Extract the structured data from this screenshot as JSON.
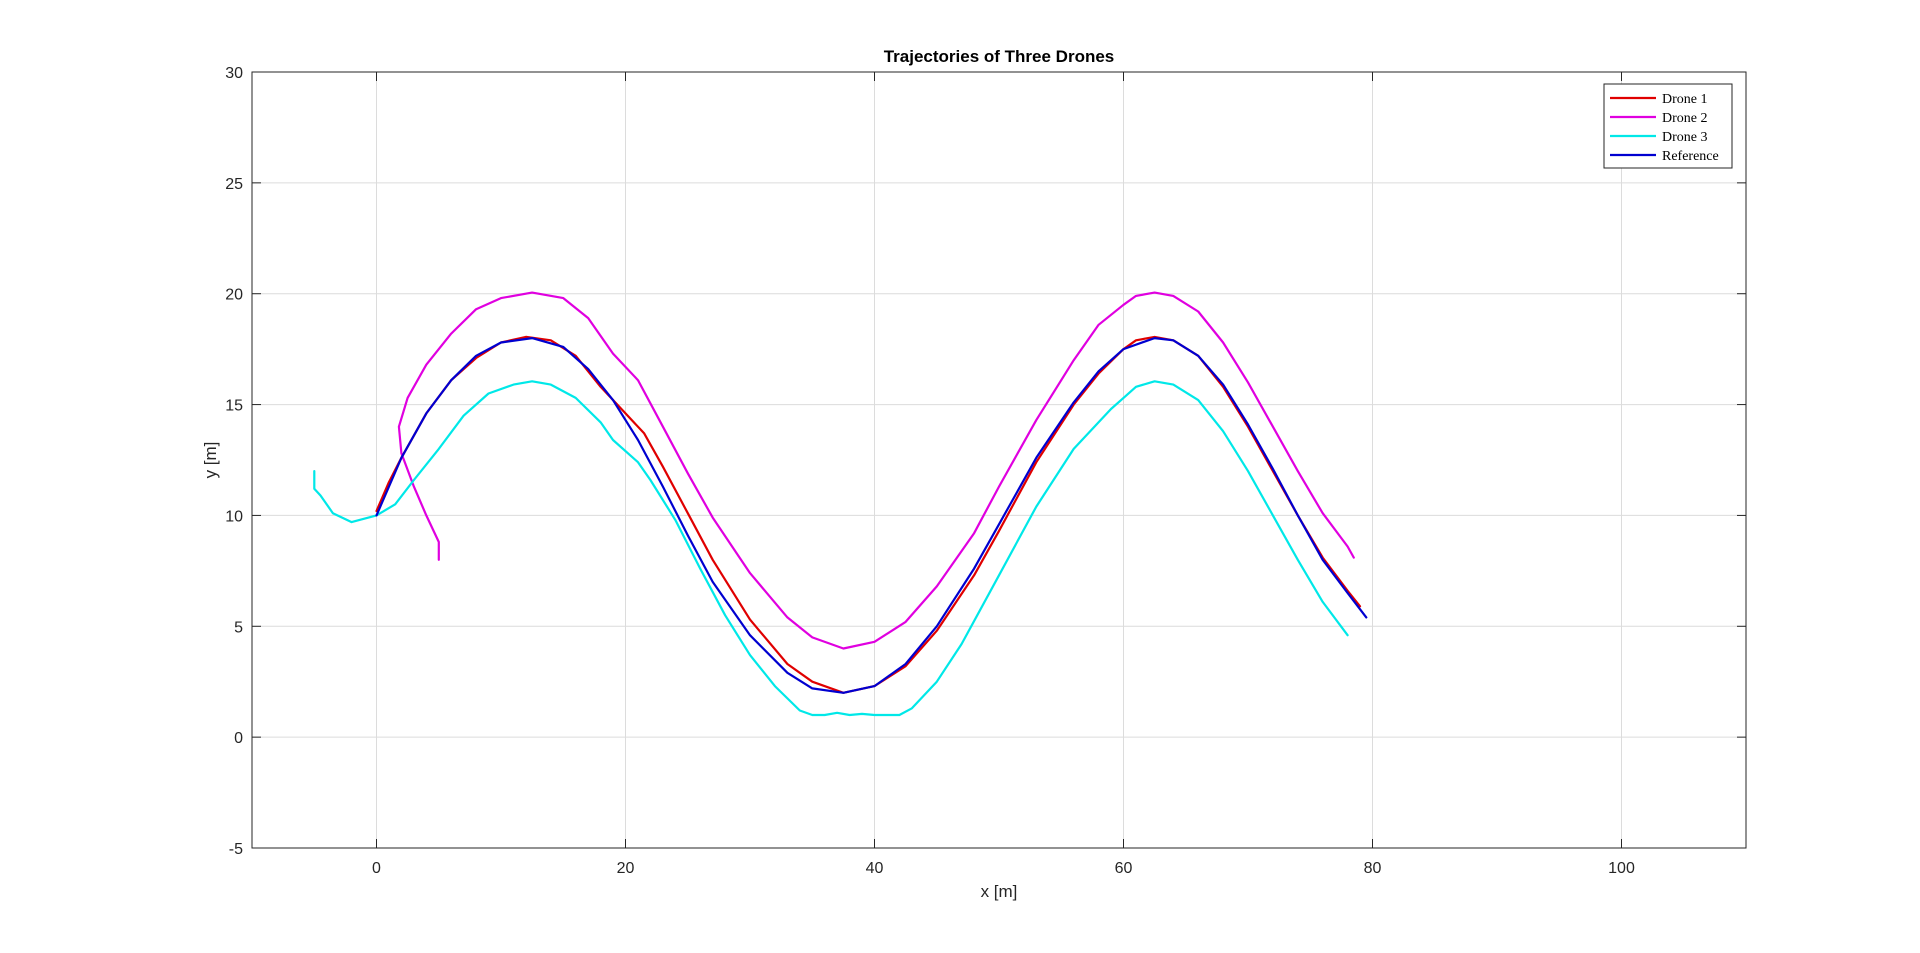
{
  "chart_data": {
    "type": "line",
    "title": "Trajectories of Three Drones",
    "xlabel": "x [m]",
    "ylabel": "y [m]",
    "xlim": [
      -10,
      110
    ],
    "ylim": [
      -5,
      30
    ],
    "xticks": [
      0,
      20,
      40,
      60,
      80,
      100
    ],
    "yticks": [
      -5,
      0,
      5,
      10,
      15,
      20,
      25,
      30
    ],
    "grid": true,
    "legend_position": "top-right",
    "series": [
      {
        "name": "Drone 1",
        "color": "#e00000",
        "points": [
          [
            0,
            10.2
          ],
          [
            1,
            11.5
          ],
          [
            2,
            12.6
          ],
          [
            4,
            14.6
          ],
          [
            6,
            16.1
          ],
          [
            8,
            17.1
          ],
          [
            10,
            17.8
          ],
          [
            12,
            18.05
          ],
          [
            14,
            17.9
          ],
          [
            16,
            17.2
          ],
          [
            18,
            15.8
          ],
          [
            20,
            14.6
          ],
          [
            21.5,
            13.7
          ],
          [
            23,
            12.2
          ],
          [
            25,
            10.1
          ],
          [
            27,
            8.0
          ],
          [
            30,
            5.3
          ],
          [
            33,
            3.3
          ],
          [
            35,
            2.5
          ],
          [
            37.5,
            2.0
          ],
          [
            40,
            2.3
          ],
          [
            42.5,
            3.2
          ],
          [
            45,
            4.8
          ],
          [
            48,
            7.3
          ],
          [
            50,
            9.3
          ],
          [
            53,
            12.4
          ],
          [
            56,
            15.0
          ],
          [
            58,
            16.4
          ],
          [
            60,
            17.5
          ],
          [
            61,
            17.9
          ],
          [
            62.5,
            18.05
          ],
          [
            64,
            17.9
          ],
          [
            66,
            17.2
          ],
          [
            68,
            15.8
          ],
          [
            70,
            14.0
          ],
          [
            72,
            12.0
          ],
          [
            74,
            10.0
          ],
          [
            76,
            8.1
          ],
          [
            78,
            6.6
          ],
          [
            79,
            5.9
          ]
        ]
      },
      {
        "name": "Drone 2",
        "color": "#e000e0",
        "points": [
          [
            5,
            8.0
          ],
          [
            5,
            8.8
          ],
          [
            4,
            10.0
          ],
          [
            3,
            11.3
          ],
          [
            2,
            12.8
          ],
          [
            1.8,
            14.0
          ],
          [
            2.5,
            15.3
          ],
          [
            4,
            16.8
          ],
          [
            6,
            18.2
          ],
          [
            8,
            19.3
          ],
          [
            10,
            19.8
          ],
          [
            12.5,
            20.05
          ],
          [
            15,
            19.8
          ],
          [
            17,
            18.9
          ],
          [
            19,
            17.3
          ],
          [
            21,
            16.1
          ],
          [
            23,
            14.0
          ],
          [
            25,
            11.9
          ],
          [
            27,
            9.9
          ],
          [
            30,
            7.4
          ],
          [
            33,
            5.4
          ],
          [
            35,
            4.5
          ],
          [
            37.5,
            4.0
          ],
          [
            40,
            4.3
          ],
          [
            42.5,
            5.2
          ],
          [
            45,
            6.8
          ],
          [
            48,
            9.2
          ],
          [
            50,
            11.3
          ],
          [
            53,
            14.3
          ],
          [
            56,
            17.0
          ],
          [
            58,
            18.6
          ],
          [
            60,
            19.5
          ],
          [
            61,
            19.9
          ],
          [
            62.5,
            20.05
          ],
          [
            64,
            19.9
          ],
          [
            66,
            19.2
          ],
          [
            68,
            17.8
          ],
          [
            70,
            16.0
          ],
          [
            72,
            14.0
          ],
          [
            74,
            12.0
          ],
          [
            76,
            10.1
          ],
          [
            78,
            8.6
          ],
          [
            78.5,
            8.1
          ]
        ]
      },
      {
        "name": "Drone 3",
        "color": "#00e8e8",
        "points": [
          [
            -5,
            12.0
          ],
          [
            -5,
            11.2
          ],
          [
            -4.5,
            10.9
          ],
          [
            -3.5,
            10.1
          ],
          [
            -2,
            9.7
          ],
          [
            0,
            10.0
          ],
          [
            1.5,
            10.5
          ],
          [
            3,
            11.6
          ],
          [
            5,
            13.0
          ],
          [
            7,
            14.5
          ],
          [
            9,
            15.5
          ],
          [
            11,
            15.9
          ],
          [
            12.5,
            16.05
          ],
          [
            14,
            15.9
          ],
          [
            16,
            15.3
          ],
          [
            18,
            14.2
          ],
          [
            19,
            13.4
          ],
          [
            21,
            12.4
          ],
          [
            22,
            11.6
          ],
          [
            24,
            9.8
          ],
          [
            26,
            7.6
          ],
          [
            28,
            5.5
          ],
          [
            30,
            3.7
          ],
          [
            32,
            2.3
          ],
          [
            34,
            1.2
          ],
          [
            35,
            1.0
          ],
          [
            36,
            1.0
          ],
          [
            37,
            1.1
          ],
          [
            38,
            1.0
          ],
          [
            39,
            1.05
          ],
          [
            40,
            1.0
          ],
          [
            41,
            1.0
          ],
          [
            42,
            1.0
          ],
          [
            43,
            1.3
          ],
          [
            45,
            2.5
          ],
          [
            47,
            4.2
          ],
          [
            50,
            7.3
          ],
          [
            53,
            10.4
          ],
          [
            56,
            13.0
          ],
          [
            59,
            14.8
          ],
          [
            60,
            15.3
          ],
          [
            61,
            15.8
          ],
          [
            62.5,
            16.05
          ],
          [
            64,
            15.9
          ],
          [
            66,
            15.2
          ],
          [
            68,
            13.8
          ],
          [
            70,
            12.0
          ],
          [
            72,
            10.0
          ],
          [
            74,
            8.0
          ],
          [
            76,
            6.1
          ],
          [
            78,
            4.6
          ]
        ]
      },
      {
        "name": "Reference",
        "color": "#0000d0",
        "points": [
          [
            0,
            10.0
          ],
          [
            2,
            12.6
          ],
          [
            4,
            14.6
          ],
          [
            6,
            16.1
          ],
          [
            8,
            17.2
          ],
          [
            10,
            17.8
          ],
          [
            12.5,
            18.0
          ],
          [
            15,
            17.6
          ],
          [
            17,
            16.6
          ],
          [
            19,
            15.2
          ],
          [
            21,
            13.4
          ],
          [
            23,
            11.3
          ],
          [
            25,
            9.1
          ],
          [
            27,
            7.0
          ],
          [
            30,
            4.6
          ],
          [
            33,
            2.9
          ],
          [
            35,
            2.2
          ],
          [
            37.5,
            2.0
          ],
          [
            40,
            2.3
          ],
          [
            42.5,
            3.3
          ],
          [
            45,
            5.0
          ],
          [
            48,
            7.6
          ],
          [
            50,
            9.6
          ],
          [
            53,
            12.6
          ],
          [
            56,
            15.1
          ],
          [
            58,
            16.5
          ],
          [
            60,
            17.5
          ],
          [
            62.5,
            18.0
          ],
          [
            64,
            17.9
          ],
          [
            66,
            17.2
          ],
          [
            68,
            15.9
          ],
          [
            70,
            14.1
          ],
          [
            72,
            12.1
          ],
          [
            74,
            10.0
          ],
          [
            76,
            8.0
          ],
          [
            78,
            6.5
          ],
          [
            79.5,
            5.4
          ]
        ]
      }
    ]
  }
}
